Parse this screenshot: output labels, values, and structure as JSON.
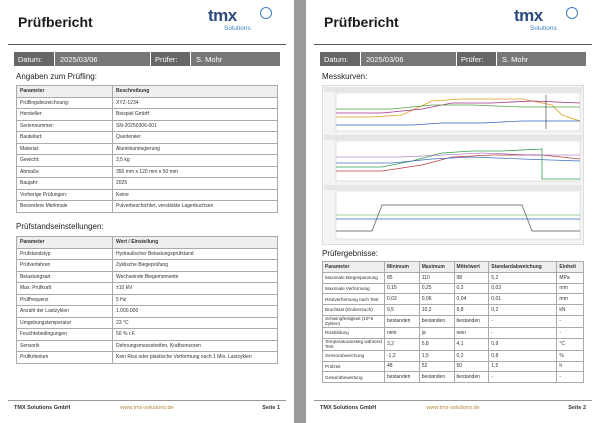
{
  "colors": {
    "accent": "#2c4a7c",
    "bar_dark": "#666666",
    "bar_light": "#777777",
    "footer_link": "#b58a3a"
  },
  "pages": [
    {
      "title": "Prüfbericht",
      "logo": {
        "brand": "tmx",
        "sub": "Solutions"
      },
      "databar": {
        "date_label": "Datum:",
        "date_value": "2025/03/06",
        "tester_label": "Prüfer:",
        "tester_value": "S. Mohr"
      },
      "footer": {
        "company": "TMX Solutions GmbH",
        "url": "www.tmx-solutions.de",
        "page": "Seite 1"
      },
      "specimen": {
        "heading": "Angaben zum Prüfling:",
        "header": [
          "Parameter",
          "Beschreibung"
        ],
        "rows": [
          [
            "Prüflingsbezeichnung:",
            "XYZ-1234"
          ],
          [
            "Hersteller:",
            "Beispiel GmbH"
          ],
          [
            "Seriennummer:",
            "SN-20250306-001"
          ],
          [
            "Bauteilart:",
            "Querlenker"
          ],
          [
            "Material:",
            "Aluminiumlegierung"
          ],
          [
            "Gewicht:",
            "3,5 kg"
          ],
          [
            "Abmaße",
            "350 mm x 120 mm x 50 mm"
          ],
          [
            "Baujahr:",
            "2025"
          ],
          [
            "Vorherige Prüfungen:",
            "Keine"
          ],
          [
            "Besondere Merkmale",
            "Pulverbeschichtet, verstärkte Lagerbuchsen"
          ]
        ]
      },
      "settings": {
        "heading": "Prüfstandseinstellungen:",
        "header": [
          "Parameter",
          "Wert / Einstellung"
        ],
        "rows": [
          [
            "Prüfstandstyp",
            "Hydraulischer Belastungsprüfstand"
          ],
          [
            "Prüfverfahren",
            "Zyklische Biegeprüfung"
          ],
          [
            "Belastungsart",
            "Wechselnde Biegemomente"
          ],
          [
            "Max. Prüfkraft",
            "±10 kN"
          ],
          [
            "Prüffrequenz",
            "5 Hz"
          ],
          [
            "Anzahl der Lastzyklen",
            "1.000.000"
          ],
          [
            "Umgebungstemperatur",
            "23 °C"
          ],
          [
            "Feuchtebedingungen",
            "50 % r.F."
          ],
          [
            "Sensorik",
            "Dehnungsmessstreifen, Kraftsensoren"
          ],
          [
            "Prüfkriterium",
            "Kein Riss oder plastische Verformung nach 1 Mio. Lastzyklen"
          ]
        ]
      }
    },
    {
      "title": "Prüfbericht",
      "logo": {
        "brand": "tmx",
        "sub": "Solutions"
      },
      "databar": {
        "date_label": "Datum:",
        "date_value": "2025/03/06",
        "tester_label": "Prüfer:",
        "tester_value": "S. Mohr"
      },
      "footer": {
        "company": "TMX Solutions GmbH",
        "url": "www.tmx-solutions.de",
        "page": "Seite 2"
      },
      "curves_heading": "Messkurven:",
      "results": {
        "heading": "Prüfergebnisse:",
        "header": [
          "Parameter",
          "Minimum",
          "Maximum",
          "Mittelwert",
          "Standardabweichung",
          "Einheit"
        ],
        "rows": [
          [
            "Maximale Biegespannung",
            "85",
            "110",
            "98",
            "5,2",
            "MPa"
          ],
          [
            "Maximale Verformung",
            "0,15",
            "0,25",
            "0,2",
            "0,03",
            "mm"
          ],
          [
            "Restverformung nach Test",
            "0,02",
            "0,06",
            "0,04",
            "0,01",
            "mm"
          ],
          [
            "Bruchlast (Endversuch)",
            "9,5",
            "10,2",
            "9,8",
            "0,2",
            "kN"
          ],
          [
            "Schwingfestigkeit (10^6 Zyklen)",
            "bestanden",
            "bestanden",
            "bestanden",
            "-",
            "-"
          ],
          [
            "Rissbildung",
            "nein",
            "ja",
            "nein",
            "-",
            "-"
          ],
          [
            "Temperaturanstieg während Test",
            "3,2",
            "5,8",
            "4,1",
            "0,9",
            "°C"
          ],
          [
            "Sensorabweichung",
            "-1,2",
            "1,5",
            "0,2",
            "0,8",
            "%"
          ],
          [
            "Prüfzeit",
            "48",
            "52",
            "50",
            "1,5",
            "h"
          ],
          [
            "Gesamtbewertung",
            "bestanden",
            "bestanden",
            "bestanden",
            "-",
            "-"
          ]
        ]
      }
    }
  ]
}
